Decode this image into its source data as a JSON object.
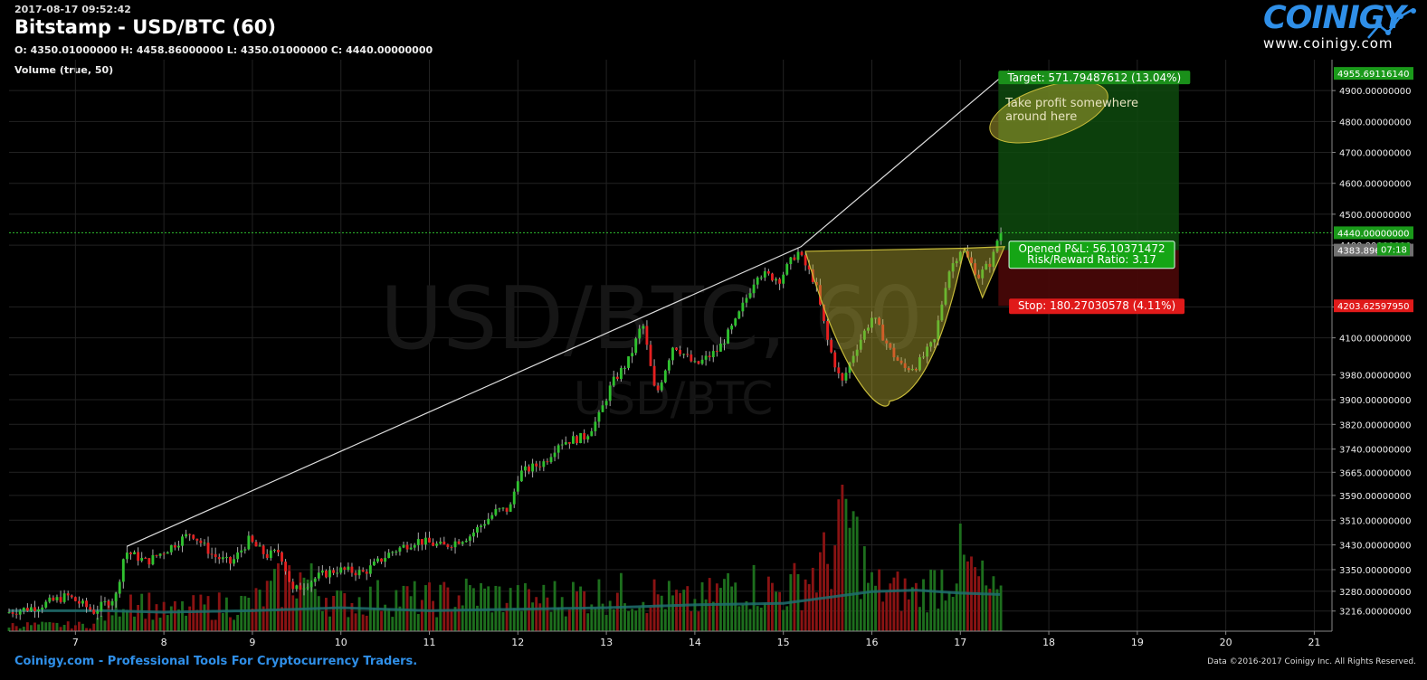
{
  "header": {
    "timestamp": "2017-08-17 09:52:42",
    "title": "Bitstamp - USD/BTC (60)",
    "ohlc": "O: 4350.01000000 H: 4458.86000000 L: 4350.01000000 C: 4440.00000000",
    "volume_label": "Volume (true, 50)"
  },
  "logo": {
    "text": "COINIGY",
    "url": "www.coinigy.com"
  },
  "watermark": {
    "big": "USD/BTC, 60",
    "small": "USD/BTC"
  },
  "footer": {
    "tagline": "Coinigy.com - Professional Tools For Cryptocurrency Traders.",
    "copyright": "Data ©2016-2017 Coinigy Inc. All Rights Reserved."
  },
  "colors": {
    "up": "#2fc22f",
    "down": "#e52020",
    "vol_up": "#1d6e1d",
    "vol_down": "#8a1313",
    "grid": "#222222",
    "ma": "#1f6f6f",
    "pattern": "#b5aa32",
    "target": "#0e4a0e",
    "stop": "#4a0808"
  },
  "annotations": {
    "target_label": "Target: 571.79487612 (13.04%)",
    "stop_label": "Stop: 180.27030578 (4.11%)",
    "pnl_line1": "Opened P&L: 56.10371472",
    "pnl_line2": "Risk/Reward Ratio: 3.17",
    "note_line1": "Take profit somewhere",
    "note_line2": "around here",
    "countdown": "07:18"
  },
  "chart_data": {
    "type": "candlestick",
    "xlabel": "",
    "ylabel": "",
    "x_ticks": [
      "7",
      "8",
      "9",
      "10",
      "11",
      "12",
      "13",
      "14",
      "15",
      "16",
      "17",
      "18",
      "19",
      "20",
      "21"
    ],
    "x_range_days": [
      6.25,
      21.2
    ],
    "ylim": [
      3186,
      5000
    ],
    "y_ticks": [
      "4900.00000000",
      "4800.00000000",
      "4700.00000000",
      "4600.00000000",
      "4500.00000000",
      "4400.00000000",
      "4200.00000000",
      "4100.00000000",
      "3980.00000000",
      "3900.00000000",
      "3820.00000000",
      "3740.00000000",
      "3665.00000000",
      "3590.00000000",
      "3510.00000000",
      "3430.00000000",
      "3350.00000000",
      "3280.00000000",
      "3216.00000000"
    ],
    "price_markers": [
      {
        "label": "4955.69116140",
        "value": 4955.6911614,
        "kind": "target"
      },
      {
        "label": "4440.00000000",
        "value": 4440,
        "kind": "last"
      },
      {
        "label": "4383.89628528",
        "value": 4383.89628528,
        "kind": "entry"
      },
      {
        "label": "4203.62597950",
        "value": 4203.6259795,
        "kind": "stop"
      }
    ],
    "last_price": 4440,
    "entry_price": 4383.9,
    "target_price": 4955.69,
    "stop_price": 4203.63,
    "trendline": [
      [
        7.58,
        3425
      ],
      [
        15.2,
        4395
      ],
      [
        17.55,
        4965
      ]
    ],
    "cup_handle": {
      "cup": [
        [
          15.25,
          4380
        ],
        [
          15.75,
          4040
        ],
        [
          16.2,
          3895
        ],
        [
          16.75,
          4080
        ],
        [
          17.05,
          4390
        ]
      ],
      "handle": [
        [
          17.05,
          4390
        ],
        [
          17.25,
          4230
        ],
        [
          17.5,
          4395
        ]
      ]
    },
    "trade_box": {
      "start": 17.43,
      "end": 19.47
    },
    "profit_note_center": [
      18.0,
      4830
    ],
    "price_anchors": [
      [
        6.25,
        3210
      ],
      [
        6.6,
        3230
      ],
      [
        6.95,
        3265
      ],
      [
        7.25,
        3215
      ],
      [
        7.5,
        3265
      ],
      [
        7.6,
        3410
      ],
      [
        7.85,
        3375
      ],
      [
        8.1,
        3420
      ],
      [
        8.35,
        3470
      ],
      [
        8.6,
        3395
      ],
      [
        8.8,
        3370
      ],
      [
        9.0,
        3445
      ],
      [
        9.2,
        3395
      ],
      [
        9.35,
        3410
      ],
      [
        9.5,
        3280
      ],
      [
        9.8,
        3330
      ],
      [
        10.0,
        3350
      ],
      [
        10.3,
        3340
      ],
      [
        10.6,
        3405
      ],
      [
        10.9,
        3445
      ],
      [
        11.2,
        3425
      ],
      [
        11.5,
        3460
      ],
      [
        11.8,
        3540
      ],
      [
        11.95,
        3545
      ],
      [
        12.05,
        3660
      ],
      [
        12.35,
        3700
      ],
      [
        12.5,
        3760
      ],
      [
        12.8,
        3780
      ],
      [
        12.95,
        3840
      ],
      [
        13.1,
        3950
      ],
      [
        13.3,
        4030
      ],
      [
        13.45,
        4150
      ],
      [
        13.6,
        3910
      ],
      [
        13.8,
        4080
      ],
      [
        14.05,
        4010
      ],
      [
        14.3,
        4060
      ],
      [
        14.5,
        4150
      ],
      [
        14.75,
        4310
      ],
      [
        15.0,
        4290
      ],
      [
        15.2,
        4380
      ],
      [
        15.4,
        4280
      ],
      [
        15.55,
        4080
      ],
      [
        15.7,
        3950
      ],
      [
        15.85,
        4060
      ],
      [
        16.05,
        4170
      ],
      [
        16.25,
        4060
      ],
      [
        16.4,
        4000
      ],
      [
        16.55,
        4010
      ],
      [
        16.75,
        4090
      ],
      [
        16.9,
        4310
      ],
      [
        17.05,
        4390
      ],
      [
        17.25,
        4300
      ],
      [
        17.4,
        4350
      ],
      [
        17.48,
        4440
      ]
    ],
    "volume_anchors": [
      [
        6.25,
        0.05
      ],
      [
        7.2,
        0.05
      ],
      [
        7.6,
        0.3
      ],
      [
        8.0,
        0.15
      ],
      [
        8.5,
        0.2
      ],
      [
        9.0,
        0.22
      ],
      [
        9.5,
        0.45
      ],
      [
        10.0,
        0.22
      ],
      [
        10.5,
        0.28
      ],
      [
        11.0,
        0.25
      ],
      [
        11.5,
        0.3
      ],
      [
        12.0,
        0.25
      ],
      [
        12.5,
        0.28
      ],
      [
        13.0,
        0.3
      ],
      [
        13.5,
        0.3
      ],
      [
        14.0,
        0.22
      ],
      [
        14.5,
        0.4
      ],
      [
        15.0,
        0.3
      ],
      [
        15.5,
        0.55
      ],
      [
        15.7,
        0.95
      ],
      [
        16.0,
        0.35
      ],
      [
        16.5,
        0.3
      ],
      [
        16.75,
        0.4
      ],
      [
        17.0,
        0.55
      ],
      [
        17.48,
        0.22
      ]
    ],
    "volume_ma_anchors": [
      [
        6.25,
        0.14
      ],
      [
        7.3,
        0.14
      ],
      [
        8.0,
        0.13
      ],
      [
        9.0,
        0.14
      ],
      [
        10.0,
        0.16
      ],
      [
        11.0,
        0.14
      ],
      [
        12.0,
        0.15
      ],
      [
        13.0,
        0.16
      ],
      [
        14.0,
        0.18
      ],
      [
        15.0,
        0.19
      ],
      [
        16.0,
        0.27
      ],
      [
        16.5,
        0.28
      ],
      [
        17.0,
        0.26
      ],
      [
        17.48,
        0.25
      ]
    ]
  }
}
